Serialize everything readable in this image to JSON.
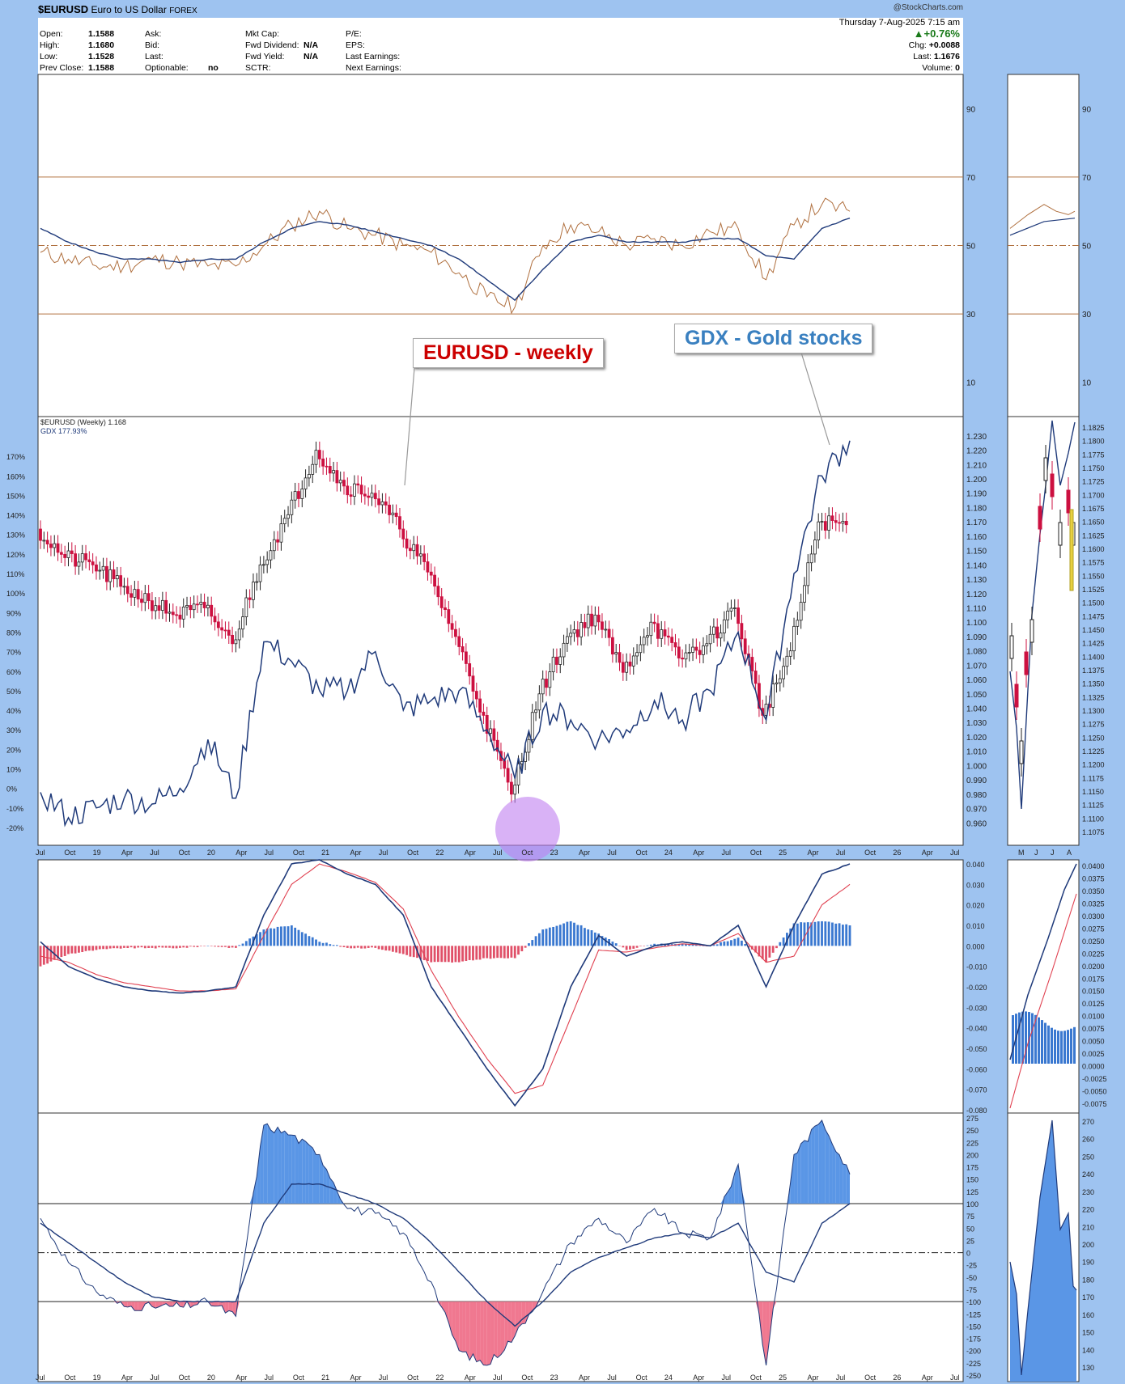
{
  "header": {
    "symbol": "$EURUSD",
    "name": "Euro to US Dollar",
    "exchange": "FOREX",
    "date": "Thursday 7-Aug-2025 7:15 am",
    "watermark": "@StockCharts.com",
    "open_label": "Open:",
    "open": "1.1588",
    "high_label": "High:",
    "high": "1.1680",
    "low_label": "Low:",
    "low": "1.1528",
    "prev_label": "Prev Close:",
    "prev": "1.1588",
    "ask_label": "Ask:",
    "bid_label": "Bid:",
    "last_label": "Last:",
    "optionable_label": "Optionable:",
    "optionable": "no",
    "mktcap_label": "Mkt Cap:",
    "fwd_div_label": "Fwd Dividend:",
    "fwd_div": "N/A",
    "fwd_yield_label": "Fwd Yield:",
    "fwd_yield": "N/A",
    "sctr_label": "SCTR:",
    "pe_label": "P/E:",
    "eps_label": "EPS:",
    "last_earn_label": "Last Earnings:",
    "next_earn_label": "Next Earnings:",
    "change_pct": "▲+0.76%",
    "chg_label": "Chg:",
    "chg": "+0.0088",
    "last_r_label": "Last:",
    "last_r": "1.1676",
    "volume_label": "Volume:",
    "volume": "0"
  },
  "annotations": {
    "eurusd": "EURUSD - weekly",
    "gdx": "GDX - Gold stocks"
  },
  "legend": {
    "eurusd": "$EURUSD (Weekly) 1.168",
    "gdx": "GDX 177.93%"
  },
  "colors": {
    "background": "#9ec3f0",
    "navy": "#1f3a7a",
    "rsi_line": "#b0703f",
    "red_candle": "#cc1040",
    "hist_blue": "#3a78d0",
    "hist_red": "#e05068",
    "fill_blue": "#5a96e6",
    "fill_pink": "#f07890",
    "circle": "#c07ef0",
    "annot_red": "#cc0000",
    "annot_blue": "#3a80c0"
  },
  "chart_data": [
    {
      "type": "line",
      "panel": "rsi",
      "ylim": [
        0,
        100
      ],
      "ticks": [
        "90",
        "70",
        "50",
        "30",
        "10"
      ],
      "reference_levels": [
        70,
        50,
        30
      ],
      "x": [
        "2018-07",
        "2018-10",
        "2019-01",
        "2019-04",
        "2019-07",
        "2019-10",
        "2020-01",
        "2020-04",
        "2020-07",
        "2020-10",
        "2021-01",
        "2021-04",
        "2021-07",
        "2021-10",
        "2022-01",
        "2022-04",
        "2022-07",
        "2022-10",
        "2023-01",
        "2023-04",
        "2023-07",
        "2023-10",
        "2024-01",
        "2024-04",
        "2024-07",
        "2024-10",
        "2025-01",
        "2025-04",
        "2025-07",
        "2025-08"
      ],
      "series": [
        {
          "values": [
            48,
            46,
            44,
            44,
            46,
            45,
            44,
            44,
            50,
            56,
            60,
            55,
            53,
            50,
            48,
            42,
            35,
            32,
            50,
            56,
            54,
            50,
            52,
            50,
            54,
            55,
            40,
            56,
            62,
            60
          ]
        },
        {
          "values": [
            55,
            51,
            48,
            46,
            46,
            45,
            46,
            46,
            51,
            55,
            57,
            56,
            54,
            52,
            50,
            46,
            40,
            34,
            43,
            51,
            53,
            51,
            51,
            51,
            52,
            52,
            47,
            46,
            55,
            58
          ]
        }
      ]
    },
    {
      "type": "line",
      "panel": "price",
      "ylim": [
        0.95,
        1.235
      ],
      "ticks_right": [
        "1.230",
        "1.220",
        "1.210",
        "1.200",
        "1.190",
        "1.180",
        "1.170",
        "1.160",
        "1.150",
        "1.140",
        "1.130",
        "1.120",
        "1.110",
        "1.100",
        "1.090",
        "1.080",
        "1.070",
        "1.060",
        "1.050",
        "1.040",
        "1.030",
        "1.020",
        "1.010",
        "1.000",
        "0.990",
        "0.980",
        "0.970",
        "0.960"
      ],
      "ticks_left": [
        "170%",
        "160%",
        "150%",
        "140%",
        "130%",
        "120%",
        "110%",
        "100%",
        "90%",
        "80%",
        "70%",
        "60%",
        "50%",
        "40%",
        "30%",
        "20%",
        "10%",
        "0%",
        "-10%",
        "-20%"
      ],
      "x": [
        "2018-07",
        "2018-10",
        "2019-01",
        "2019-04",
        "2019-07",
        "2019-10",
        "2020-01",
        "2020-04",
        "2020-07",
        "2020-10",
        "2021-01",
        "2021-04",
        "2021-07",
        "2021-10",
        "2022-01",
        "2022-04",
        "2022-07",
        "2022-10",
        "2023-01",
        "2023-04",
        "2023-07",
        "2023-10",
        "2024-01",
        "2024-04",
        "2024-07",
        "2024-10",
        "2025-01",
        "2025-04",
        "2025-07",
        "2025-08"
      ],
      "series": [
        {
          "name": "$EURUSD",
          "values": [
            1.165,
            1.145,
            1.14,
            1.125,
            1.115,
            1.105,
            1.11,
            1.085,
            1.14,
            1.175,
            1.22,
            1.195,
            1.19,
            1.165,
            1.135,
            1.09,
            1.035,
            0.98,
            1.05,
            1.09,
            1.105,
            1.065,
            1.1,
            1.075,
            1.085,
            1.11,
            1.035,
            1.08,
            1.17,
            1.168
          ]
        },
        {
          "name": "GDX",
          "values": [
            -2,
            -15,
            -10,
            -5,
            -8,
            0,
            25,
            -5,
            75,
            65,
            50,
            50,
            70,
            40,
            45,
            50,
            30,
            5,
            40,
            35,
            25,
            30,
            45,
            35,
            50,
            80,
            35,
            110,
            160,
            178
          ]
        }
      ]
    },
    {
      "type": "line",
      "panel": "macd",
      "ylim": [
        -0.08,
        0.04
      ],
      "ticks": [
        "0.040",
        "0.030",
        "0.020",
        "0.010",
        "0.000",
        "-0.010",
        "-0.020",
        "-0.030",
        "-0.040",
        "-0.050",
        "-0.060",
        "-0.070",
        "-0.080"
      ],
      "x": [
        "2018-07",
        "2018-10",
        "2019-01",
        "2019-04",
        "2019-07",
        "2019-10",
        "2020-01",
        "2020-04",
        "2020-07",
        "2020-10",
        "2021-01",
        "2021-04",
        "2021-07",
        "2021-10",
        "2022-01",
        "2022-04",
        "2022-07",
        "2022-10",
        "2023-01",
        "2023-04",
        "2023-07",
        "2023-10",
        "2024-01",
        "2024-04",
        "2024-07",
        "2024-10",
        "2025-01",
        "2025-04",
        "2025-07",
        "2025-08"
      ],
      "series": [
        {
          "values": [
            0.002,
            -0.01,
            -0.016,
            -0.02,
            -0.022,
            -0.023,
            -0.022,
            -0.02,
            0.015,
            0.04,
            0.042,
            0.035,
            0.03,
            0.015,
            -0.02,
            -0.04,
            -0.06,
            -0.078,
            -0.06,
            -0.02,
            0.005,
            -0.005,
            0.0,
            0.002,
            0.0,
            0.01,
            -0.02,
            0.01,
            0.035,
            0.04
          ]
        },
        {
          "values": [
            -0.005,
            -0.008,
            -0.014,
            -0.018,
            -0.02,
            -0.022,
            -0.022,
            -0.021,
            0.005,
            0.03,
            0.04,
            0.036,
            0.031,
            0.018,
            -0.012,
            -0.035,
            -0.055,
            -0.072,
            -0.068,
            -0.035,
            -0.002,
            -0.003,
            -0.001,
            0.001,
            0.0,
            0.006,
            -0.008,
            -0.005,
            0.02,
            0.03
          ]
        },
        {
          "values": [
            -0.01,
            -0.004,
            -0.002,
            -0.001,
            -0.001,
            -0.001,
            0.0,
            -0.001,
            0.008,
            0.01,
            0.002,
            -0.001,
            -0.001,
            -0.004,
            -0.008,
            -0.008,
            -0.006,
            -0.006,
            0.008,
            0.012,
            0.006,
            -0.002,
            0.001,
            0.001,
            0.0,
            0.004,
            -0.008,
            0.011,
            0.012,
            0.01
          ]
        }
      ]
    },
    {
      "type": "area",
      "panel": "cci",
      "ylim": [
        -250,
        275
      ],
      "ticks": [
        "275",
        "250",
        "225",
        "200",
        "175",
        "150",
        "125",
        "100",
        "75",
        "50",
        "25",
        "0",
        "-25",
        "-50",
        "-75",
        "-100",
        "-125",
        "-150",
        "-175",
        "-200",
        "-225",
        "-250"
      ],
      "reference_levels": [
        100,
        0,
        -100
      ],
      "x": [
        "2018-07",
        "2018-10",
        "2019-01",
        "2019-04",
        "2019-07",
        "2019-10",
        "2020-01",
        "2020-04",
        "2020-07",
        "2020-10",
        "2021-01",
        "2021-04",
        "2021-07",
        "2021-10",
        "2022-01",
        "2022-04",
        "2022-07",
        "2022-10",
        "2023-01",
        "2023-04",
        "2023-07",
        "2023-10",
        "2024-01",
        "2024-04",
        "2024-07",
        "2024-10",
        "2025-01",
        "2025-04",
        "2025-07",
        "2025-08"
      ],
      "series": [
        {
          "values": [
            70,
            -20,
            -80,
            -110,
            -110,
            -110,
            -100,
            -130,
            260,
            240,
            200,
            90,
            80,
            40,
            -60,
            -200,
            -230,
            -170,
            -80,
            20,
            70,
            20,
            90,
            40,
            30,
            180,
            -230,
            200,
            270,
            160
          ]
        },
        {
          "values": [
            60,
            20,
            -20,
            -60,
            -90,
            -100,
            -100,
            -100,
            60,
            140,
            140,
            120,
            100,
            70,
            20,
            -40,
            -100,
            -150,
            -100,
            -40,
            -10,
            10,
            30,
            40,
            30,
            60,
            -40,
            -60,
            60,
            100
          ]
        }
      ]
    }
  ],
  "x_axis": {
    "labels": [
      "Jul",
      "Oct",
      "19",
      "Apr",
      "Jul",
      "Oct",
      "20",
      "Apr",
      "Jul",
      "Oct",
      "21",
      "Apr",
      "Jul",
      "Oct",
      "22",
      "Apr",
      "Jul",
      "Oct",
      "23",
      "Apr",
      "Jul",
      "Oct",
      "24",
      "Apr",
      "Jul",
      "Oct",
      "25",
      "Apr",
      "Jul",
      "Oct",
      "26",
      "Apr",
      "Jul"
    ],
    "side_labels": [
      "M",
      "J",
      "J",
      "A"
    ]
  },
  "side_ticks": {
    "rsi": [
      "90",
      "70",
      "50",
      "30",
      "10"
    ],
    "price": [
      "1.1825",
      "1.1800",
      "1.1775",
      "1.1750",
      "1.1725",
      "1.1700",
      "1.1675",
      "1.1650",
      "1.1625",
      "1.1600",
      "1.1575",
      "1.1550",
      "1.1525",
      "1.1500",
      "1.1475",
      "1.1450",
      "1.1425",
      "1.1400",
      "1.1375",
      "1.1350",
      "1.1325",
      "1.1300",
      "1.1275",
      "1.1250",
      "1.1225",
      "1.1200",
      "1.1175",
      "1.1150",
      "1.1125",
      "1.1100",
      "1.1075"
    ],
    "macd": [
      "0.0400",
      "0.0375",
      "0.0350",
      "0.0325",
      "0.0300",
      "0.0275",
      "0.0250",
      "0.0225",
      "0.0200",
      "0.0175",
      "0.0150",
      "0.0125",
      "0.0100",
      "0.0075",
      "0.0050",
      "0.0025",
      "0.0000",
      "-0.0025",
      "-0.0050",
      "-0.0075"
    ],
    "cci": [
      "270",
      "260",
      "250",
      "240",
      "230",
      "220",
      "210",
      "200",
      "190",
      "180",
      "170",
      "160",
      "150",
      "140",
      "130"
    ]
  }
}
